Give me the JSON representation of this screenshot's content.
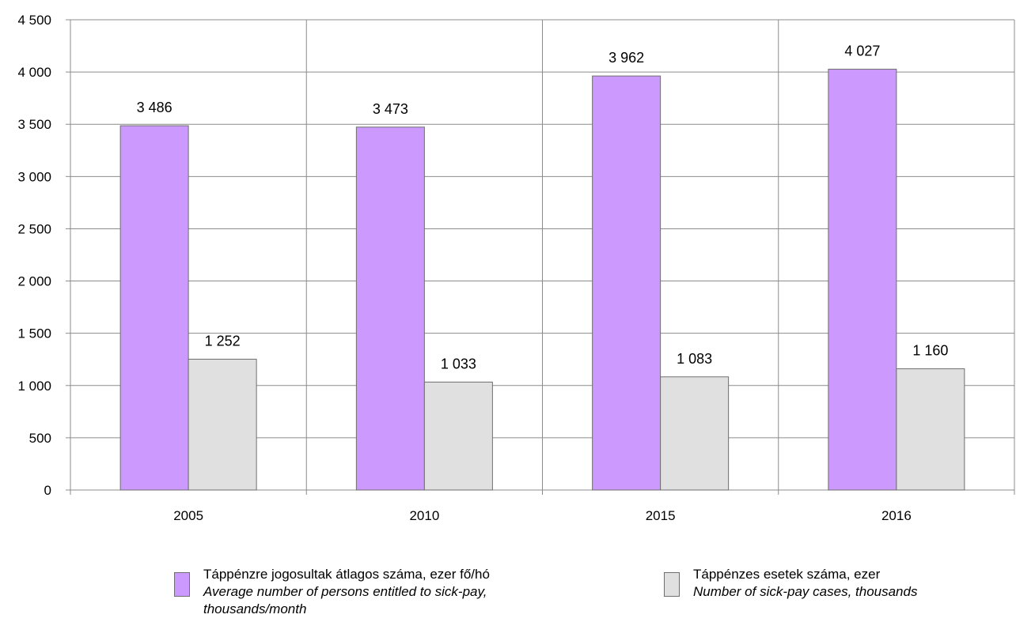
{
  "chart_data": {
    "type": "bar",
    "categories": [
      "2005",
      "2010",
      "2015",
      "2016"
    ],
    "series": [
      {
        "name": "Táppénzre jogosultak átlagos száma, ezer fő/hó",
        "name_en": "Average number of persons entitled to sick-pay, thousands/month",
        "values": [
          3486,
          3473,
          3962,
          4027
        ],
        "labels": [
          "3 486",
          "3 473",
          "3 962",
          "4 027"
        ],
        "color": "#cc99ff"
      },
      {
        "name": "Táppénzes esetek száma, ezer",
        "name_en": "Number of sick-pay cases, thousands",
        "values": [
          1252,
          1033,
          1083,
          1160
        ],
        "labels": [
          "1 252",
          "1 033",
          "1 083",
          "1 160"
        ],
        "color": "#e0e0e0"
      }
    ],
    "y_ticks": [
      0,
      500,
      1000,
      1500,
      2000,
      2500,
      3000,
      3500,
      4000,
      4500
    ],
    "y_tick_labels": [
      "0",
      "500",
      "1 000",
      "1 500",
      "2 000",
      "2 500",
      "3 000",
      "3 500",
      "4 000",
      "4 500"
    ],
    "ylim": [
      0,
      4500
    ],
    "grid": true,
    "legend_position": "bottom"
  },
  "legend": {
    "item1": {
      "line1": "Táppénzre jogosultak átlagos száma, ezer fő/hó",
      "line2": "Average number of persons entitled to sick-pay,",
      "line3": "thousands/month"
    },
    "item2": {
      "line1": "Táppénzes esetek száma, ezer",
      "line2": "Number of sick-pay cases, thousands"
    }
  }
}
